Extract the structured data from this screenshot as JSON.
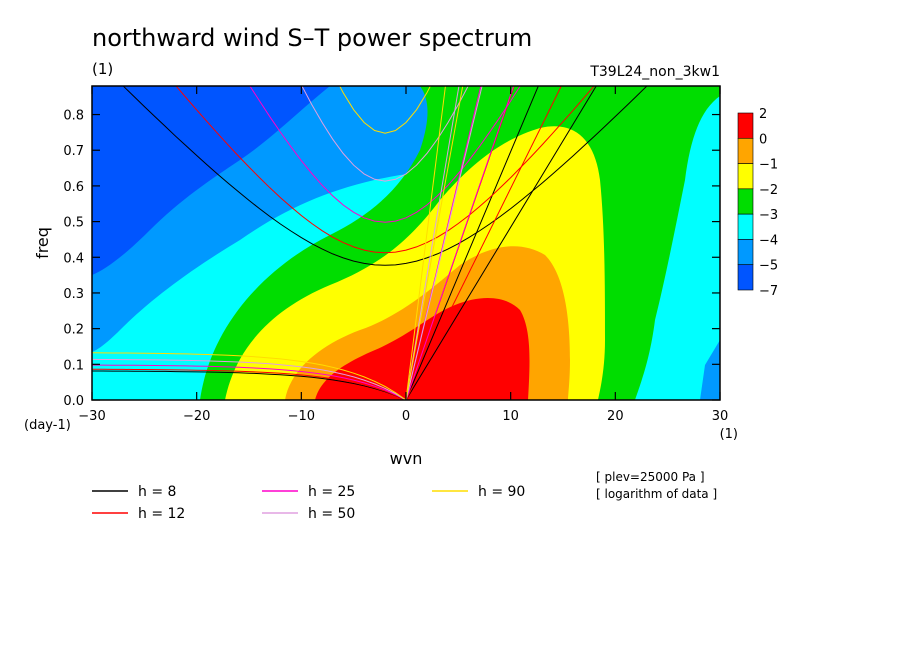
{
  "chart_data": {
    "type": "heatmap",
    "title": "northward wind S–T power spectrum",
    "subtitle_left": "(1)",
    "subtitle_right": "T39L24_non_3kw1",
    "xlabel": "wvn",
    "ylabel": "freq",
    "x_unit": "(1)",
    "y_unit": "(day-1)",
    "xlim": [
      -30,
      30
    ],
    "ylim": [
      0,
      0.88
    ],
    "x_ticks": [
      -30,
      -20,
      -10,
      0,
      10,
      20,
      30
    ],
    "y_ticks": [
      0.0,
      0.1,
      0.2,
      0.3,
      0.4,
      0.5,
      0.6,
      0.7,
      0.8
    ],
    "x_tick_labels": [
      "−30",
      "−20",
      "−10",
      "0",
      "10",
      "20",
      "30"
    ],
    "y_tick_labels": [
      "0.0",
      "0.1",
      "0.2",
      "0.3",
      "0.4",
      "0.5",
      "0.6",
      "0.7",
      "0.8"
    ],
    "colorbar": {
      "labels": [
        "2",
        "0",
        "−1",
        "−2",
        "−3",
        "−4",
        "−5",
        "−7"
      ],
      "bands": [
        {
          "range": [
            0,
            2
          ],
          "color": "#ff0000"
        },
        {
          "range": [
            -1,
            0
          ],
          "color": "#ffa500"
        },
        {
          "range": [
            -2,
            -1
          ],
          "color": "#ffff00"
        },
        {
          "range": [
            -3,
            -2
          ],
          "color": "#00dd00"
        },
        {
          "range": [
            -4,
            -3
          ],
          "color": "#00ffff"
        },
        {
          "range": [
            -5,
            -4
          ],
          "color": "#0099ff"
        },
        {
          "range": [
            -7,
            -5
          ],
          "color": "#0055ff"
        }
      ]
    },
    "legend": [
      {
        "label": "h =  8",
        "h": 8,
        "color": "#000000"
      },
      {
        "label": "h = 12",
        "h": 12,
        "color": "#ff0000"
      },
      {
        "label": "h = 25",
        "h": 25,
        "color": "#ff00cc"
      },
      {
        "label": "h = 50",
        "h": 50,
        "color": "#e0a0e0"
      },
      {
        "label": "h = 90",
        "h": 90,
        "color": "#ffdd00"
      }
    ],
    "notes": [
      "[ plev=25000 Pa ]",
      "[ logarithm of data ]"
    ]
  }
}
